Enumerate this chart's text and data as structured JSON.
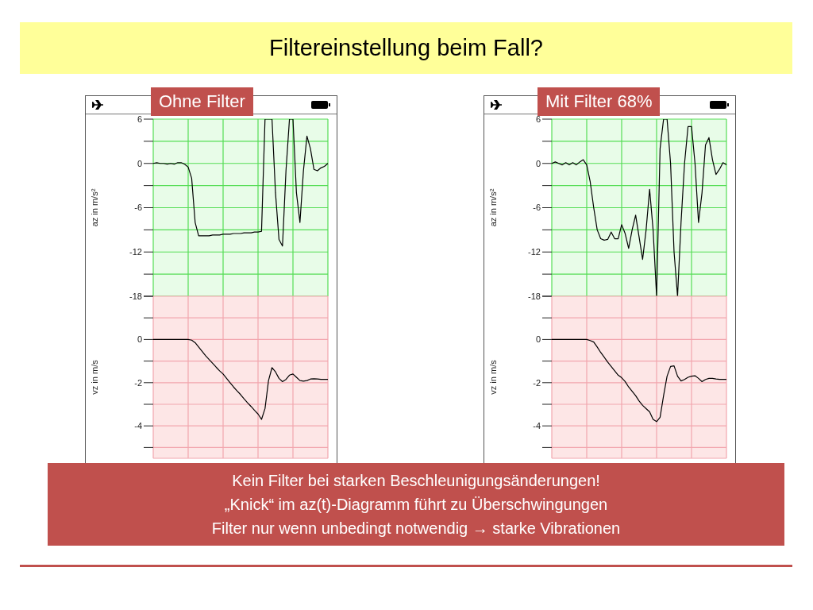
{
  "chart_data": [
    {
      "type": "other",
      "title": "Filtereinstellung beim Fall?"
    },
    {
      "type": "line",
      "subtitle": "Ohne Filter",
      "ylabel": "az in m/s²",
      "color": "#000000",
      "grid": true,
      "tick_labels": "y",
      "ylim": [
        -18,
        6
      ],
      "yticks": [
        6,
        {
          "value": 3,
          "label": null
        },
        0,
        {
          "value": -3,
          "label": null
        },
        -6,
        {
          "value": -9,
          "label": null
        },
        -12,
        {
          "value": -15,
          "label": null
        },
        -18
      ],
      "categories": [
        null,
        null,
        null,
        null,
        null,
        null,
        null,
        null,
        null,
        null,
        null,
        null,
        null,
        null,
        null,
        null,
        null,
        null,
        null,
        null,
        null,
        null,
        null,
        null,
        null,
        null,
        null,
        null,
        null,
        null,
        null,
        null,
        null,
        null,
        null,
        null,
        null,
        null,
        null,
        null,
        null,
        null,
        null,
        null,
        null,
        null,
        null,
        null,
        null,
        null,
        null
      ],
      "values": [
        0,
        0.1,
        0,
        0,
        -0.1,
        0,
        -0.1,
        0.1,
        0.1,
        -0.1,
        -0.5,
        -2,
        -8,
        -9.8,
        -9.8,
        -9.8,
        -9.8,
        -9.7,
        -9.7,
        -9.7,
        -9.6,
        -9.6,
        -9.6,
        -9.5,
        -9.5,
        -9.5,
        -9.4,
        -9.4,
        -9.4,
        -9.3,
        -9.3,
        -9.2,
        6,
        6,
        6,
        -4,
        -10.3,
        -11.2,
        -1,
        6,
        6,
        -4,
        -8,
        -1,
        3.7,
        2,
        -0.8,
        -1,
        -0.6,
        -0.4,
        0
      ]
    },
    {
      "type": "line",
      "ylabel": "vz in m/s",
      "color": "#000000",
      "grid": true,
      "tick_labels": "y",
      "ylim": [
        -5.5,
        2
      ],
      "yticks": [
        {
          "value": 2,
          "label": null
        },
        {
          "value": 1,
          "label": null
        },
        0,
        {
          "value": -1,
          "label": null
        },
        -2,
        {
          "value": -3,
          "label": null
        },
        -4,
        {
          "value": -5,
          "label": null
        }
      ],
      "categories": [
        null,
        null,
        null,
        null,
        null,
        null,
        null,
        null,
        null,
        null,
        null,
        null,
        null,
        null,
        null,
        null,
        null,
        null,
        null,
        null,
        null,
        null,
        null,
        null,
        null,
        null,
        null,
        null,
        null,
        null,
        null,
        null,
        null,
        null,
        null,
        null,
        null,
        null,
        null,
        null,
        null,
        null,
        null,
        null,
        null,
        null,
        null,
        null,
        null,
        null,
        null
      ],
      "values": [
        0,
        0,
        0,
        0,
        0,
        0,
        0,
        0,
        0,
        0,
        0,
        -0.03,
        -0.15,
        -0.35,
        -0.55,
        -0.75,
        -0.93,
        -1.1,
        -1.28,
        -1.45,
        -1.6,
        -1.8,
        -2,
        -2.2,
        -2.38,
        -2.55,
        -2.75,
        -2.93,
        -3.1,
        -3.28,
        -3.45,
        -3.7,
        -3.2,
        -1.9,
        -1.3,
        -1.5,
        -1.8,
        -1.95,
        -1.85,
        -1.65,
        -1.6,
        -1.75,
        -1.9,
        -1.93,
        -1.9,
        -1.83,
        -1.82,
        -1.83,
        -1.85,
        -1.85,
        -1.85
      ]
    },
    {
      "type": "line",
      "subtitle": "Mit Filter 68%",
      "ylabel": "az in m/s²",
      "color": "#000000",
      "grid": true,
      "tick_labels": "y",
      "ylim": [
        -18,
        6
      ],
      "yticks": [
        6,
        {
          "value": 3,
          "label": null
        },
        0,
        {
          "value": -3,
          "label": null
        },
        -6,
        {
          "value": -9,
          "label": null
        },
        -12,
        {
          "value": -15,
          "label": null
        },
        -18
      ],
      "categories": [
        null,
        null,
        null,
        null,
        null,
        null,
        null,
        null,
        null,
        null,
        null,
        null,
        null,
        null,
        null,
        null,
        null,
        null,
        null,
        null,
        null,
        null,
        null,
        null,
        null,
        null,
        null,
        null,
        null,
        null,
        null,
        null,
        null,
        null,
        null,
        null,
        null,
        null,
        null,
        null,
        null,
        null,
        null,
        null,
        null,
        null,
        null,
        null,
        null,
        null,
        null
      ],
      "values": [
        0,
        0.2,
        0,
        -0.2,
        0.1,
        -0.2,
        0.1,
        -0.2,
        0.2,
        0.5,
        -0.2,
        -2.5,
        -6,
        -9,
        -10.2,
        -10.4,
        -10.3,
        -9.3,
        -10.2,
        -10.2,
        -8.3,
        -9.5,
        -11.5,
        -9,
        -7,
        -10,
        -13,
        -9,
        -3.5,
        -9,
        -18,
        2,
        6,
        6,
        0,
        -12,
        -18,
        -8,
        0,
        5,
        5,
        0,
        -8,
        -4,
        2.5,
        3.5,
        0.5,
        -1.5,
        -0.8,
        0.1,
        -0.2
      ]
    },
    {
      "type": "line",
      "ylabel": "vz in m/s",
      "color": "#000000",
      "grid": true,
      "tick_labels": "y",
      "ylim": [
        -5.5,
        2
      ],
      "yticks": [
        {
          "value": 2,
          "label": null
        },
        {
          "value": 1,
          "label": null
        },
        0,
        {
          "value": -1,
          "label": null
        },
        -2,
        {
          "value": -3,
          "label": null
        },
        -4,
        {
          "value": -5,
          "label": null
        }
      ],
      "categories": [
        null,
        null,
        null,
        null,
        null,
        null,
        null,
        null,
        null,
        null,
        null,
        null,
        null,
        null,
        null,
        null,
        null,
        null,
        null,
        null,
        null,
        null,
        null,
        null,
        null,
        null,
        null,
        null,
        null,
        null,
        null,
        null,
        null,
        null,
        null,
        null,
        null,
        null,
        null,
        null,
        null,
        null,
        null,
        null,
        null,
        null,
        null,
        null,
        null,
        null,
        null
      ],
      "values": [
        0,
        0,
        0,
        0,
        0,
        0,
        0,
        0,
        0,
        0,
        0,
        -0.05,
        -0.12,
        -0.35,
        -0.6,
        -0.82,
        -1.05,
        -1.25,
        -1.45,
        -1.65,
        -1.77,
        -1.95,
        -2.2,
        -2.4,
        -2.6,
        -2.85,
        -3.05,
        -3.2,
        -3.35,
        -3.7,
        -3.8,
        -3.6,
        -2.6,
        -1.7,
        -1.25,
        -1.22,
        -1.7,
        -1.92,
        -1.85,
        -1.75,
        -1.7,
        -1.68,
        -1.8,
        -1.95,
        -1.85,
        -1.8,
        -1.8,
        -1.83,
        -1.85,
        -1.85,
        -1.85
      ]
    },
    {
      "type": "other",
      "annotations": [
        "Kein Filter bei starken Beschleunigungsänderungen!",
        "„Knick“ im az(t)-Diagramm führt zu Überschwingungen",
        "Filter nur wenn unbedingt notwendig → starke Vibrationen"
      ]
    }
  ]
}
